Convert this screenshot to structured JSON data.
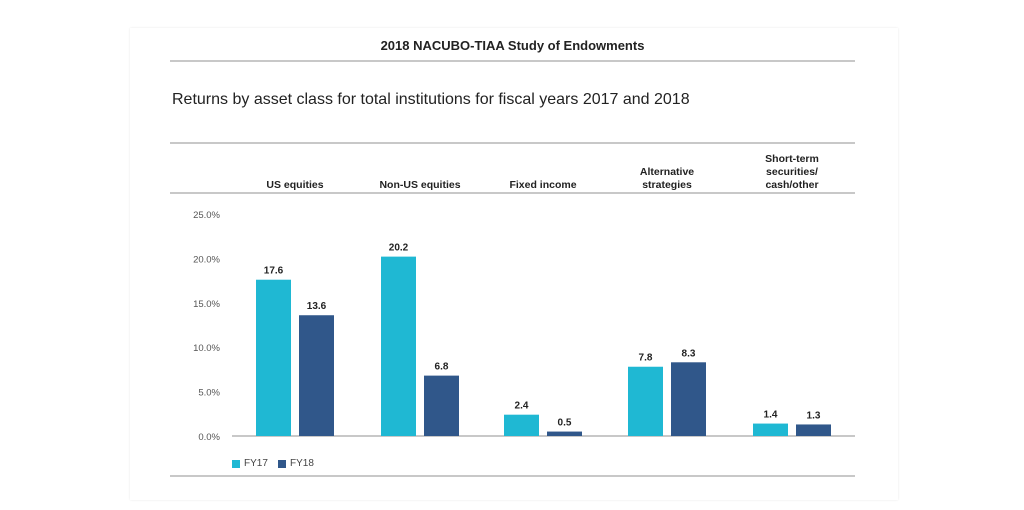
{
  "header": {
    "title": "2018 NACUBO-TIAA Study of Endowments"
  },
  "chart_data": {
    "type": "bar",
    "title": "Returns by asset class for total institutions for fiscal years 2017 and 2018",
    "categories": [
      "US equities",
      "Non-US equities",
      "Fixed income",
      "Alternative strategies",
      "Short-term securities/ cash/other"
    ],
    "series": [
      {
        "name": "FY17",
        "color": "#1fb8d3",
        "values": [
          17.6,
          20.2,
          2.4,
          7.8,
          1.4
        ]
      },
      {
        "name": "FY18",
        "color": "#30578a",
        "values": [
          13.6,
          6.8,
          0.5,
          8.3,
          1.3
        ]
      }
    ],
    "yticks": [
      "0.0%",
      "5.0%",
      "10.0%",
      "15.0%",
      "20.0%",
      "25.0%"
    ],
    "ylim": [
      0,
      25
    ],
    "grid": false,
    "legend": "bottom-left"
  }
}
